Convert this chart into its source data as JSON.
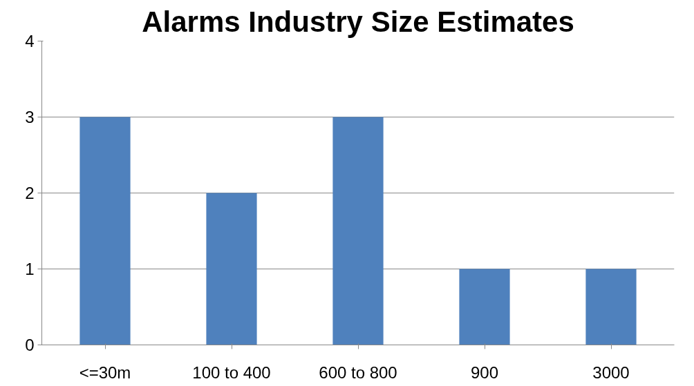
{
  "chart_data": {
    "type": "bar",
    "title": "Alarms Industry Size Estimates",
    "categories": [
      "<=30m",
      "100 to 400",
      "600 to 800",
      "900",
      "3000"
    ],
    "values": [
      3,
      2,
      3,
      1,
      1
    ],
    "color": "#4f81bd",
    "ylim": [
      0,
      4
    ],
    "yticks": [
      0,
      1,
      2,
      3,
      4
    ],
    "grid": "y"
  }
}
